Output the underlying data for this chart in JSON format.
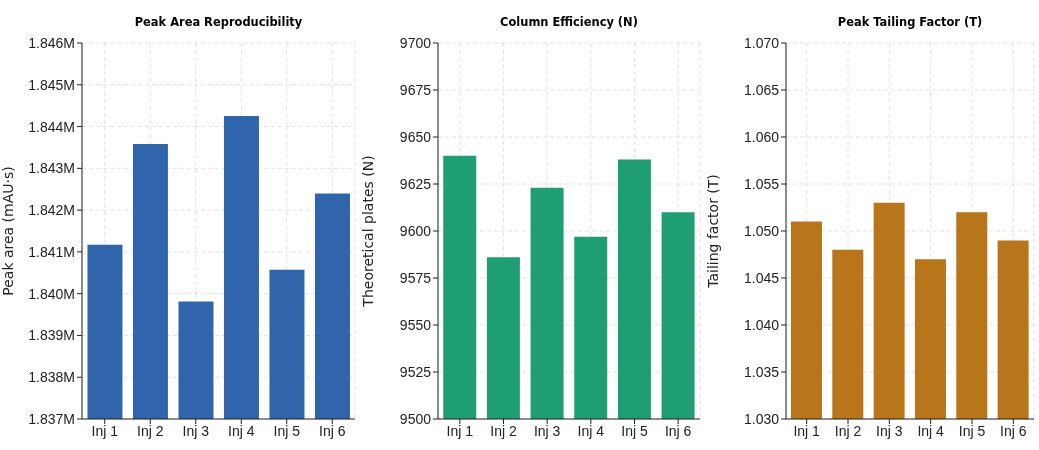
{
  "chart_data": [
    {
      "type": "bar",
      "title": "Peak Area Reproducibility",
      "ylabel": "Peak area (mAU·s)",
      "categories": [
        "Inj 1",
        "Inj 2",
        "Inj 3",
        "Inj 4",
        "Inj 5",
        "Inj 6"
      ],
      "values": [
        1841170,
        1843580,
        1839810,
        1844250,
        1840570,
        1842400
      ],
      "color": "#3165ab",
      "ylim": [
        1837000,
        1846000
      ],
      "yticks": [
        {
          "value": 1837000,
          "label": "1.837M"
        },
        {
          "value": 1838000,
          "label": "1.838M"
        },
        {
          "value": 1839000,
          "label": "1.839M"
        },
        {
          "value": 1840000,
          "label": "1.840M"
        },
        {
          "value": 1841000,
          "label": "1.841M"
        },
        {
          "value": 1842000,
          "label": "1.842M"
        },
        {
          "value": 1843000,
          "label": "1.843M"
        },
        {
          "value": 1844000,
          "label": "1.844M"
        },
        {
          "value": 1845000,
          "label": "1.845M"
        },
        {
          "value": 1846000,
          "label": "1.846M"
        }
      ],
      "grid": true
    },
    {
      "type": "bar",
      "title": "Column Efficiency (N)",
      "ylabel": "Theoretical plates (N)",
      "categories": [
        "Inj 1",
        "Inj 2",
        "Inj 3",
        "Inj 4",
        "Inj 5",
        "Inj 6"
      ],
      "values": [
        9640,
        9586,
        9623,
        9597,
        9638,
        9610
      ],
      "color": "#1f9e74",
      "ylim": [
        9500,
        9700
      ],
      "yticks": [
        9500,
        9525,
        9550,
        9575,
        9600,
        9625,
        9650,
        9675,
        9700
      ],
      "grid": true
    },
    {
      "type": "bar",
      "title": "Peak Tailing Factor (T)",
      "ylabel": "Tailing factor (T)",
      "categories": [
        "Inj 1",
        "Inj 2",
        "Inj 3",
        "Inj 4",
        "Inj 5",
        "Inj 6"
      ],
      "values": [
        1.051,
        1.048,
        1.053,
        1.047,
        1.052,
        1.049
      ],
      "color": "#b8751a",
      "ylim": [
        1.03,
        1.07
      ],
      "yticks": [
        {
          "value": 1.03,
          "label": "1.030"
        },
        {
          "value": 1.035,
          "label": "1.035"
        },
        {
          "value": 1.04,
          "label": "1.040"
        },
        {
          "value": 1.045,
          "label": "1.045"
        },
        {
          "value": 1.05,
          "label": "1.050"
        },
        {
          "value": 1.055,
          "label": "1.055"
        },
        {
          "value": 1.06,
          "label": "1.060"
        },
        {
          "value": 1.065,
          "label": "1.065"
        },
        {
          "value": 1.07,
          "label": "1.070"
        }
      ],
      "grid": true
    }
  ]
}
